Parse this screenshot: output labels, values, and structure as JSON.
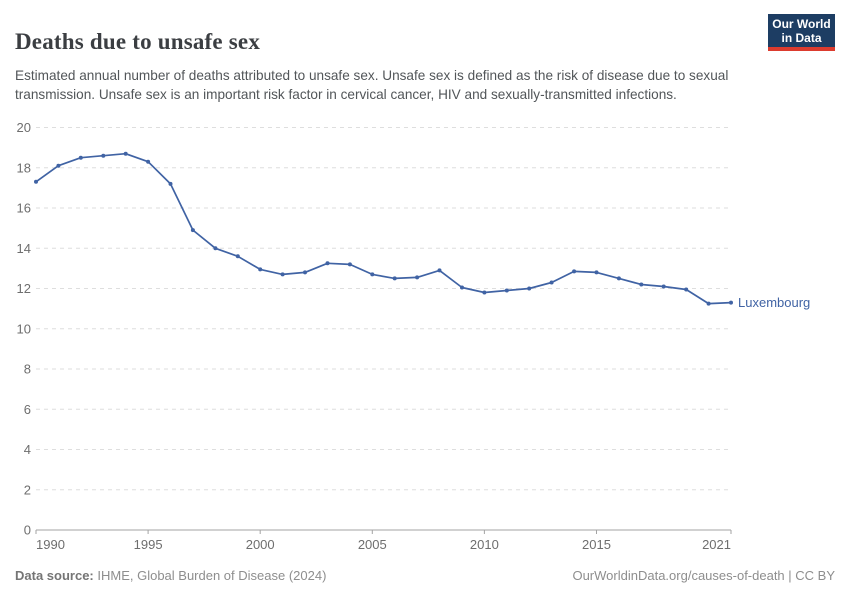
{
  "header": {
    "title": "Deaths due to unsafe sex",
    "subtitle": "Estimated annual number of deaths attributed to unsafe sex. Unsafe sex is defined as the risk of disease due to sexual transmission. Unsafe sex is an important risk factor in cervical cancer, HIV and sexually-transmitted infections.",
    "logo": {
      "line1": "Our World",
      "line2": "in Data",
      "bg_color": "#1d3d63",
      "stripe_color": "#dc3b2e"
    }
  },
  "chart_data": {
    "type": "line",
    "title": "Deaths due to unsafe sex",
    "xlabel": "",
    "ylabel": "",
    "ylim": [
      0,
      20
    ],
    "yticks": [
      0,
      2,
      4,
      6,
      8,
      10,
      12,
      14,
      16,
      18,
      20
    ],
    "xticks": [
      1990,
      1995,
      2000,
      2005,
      2010,
      2015,
      2021
    ],
    "grid": "horizontal-dashed",
    "legend_position": "end-of-line-label",
    "x": [
      1990,
      1991,
      1992,
      1993,
      1994,
      1995,
      1996,
      1997,
      1998,
      1999,
      2000,
      2001,
      2002,
      2003,
      2004,
      2005,
      2006,
      2007,
      2008,
      2009,
      2010,
      2011,
      2012,
      2013,
      2014,
      2015,
      2016,
      2017,
      2018,
      2019,
      2020,
      2021
    ],
    "series": [
      {
        "name": "Luxembourg",
        "color": "#4063a4",
        "values": [
          17.3,
          18.1,
          18.5,
          18.6,
          18.7,
          18.3,
          17.2,
          14.9,
          14.0,
          13.6,
          12.95,
          12.7,
          12.8,
          13.25,
          13.2,
          12.7,
          12.5,
          12.55,
          12.9,
          12.05,
          11.8,
          11.9,
          12.0,
          12.3,
          12.85,
          12.8,
          12.5,
          12.2,
          12.1,
          11.95,
          11.25,
          11.3
        ]
      }
    ],
    "colors": {
      "gridline": "#dedede",
      "axis": "#a3a3a3",
      "tick_label": "#6e6e6e"
    }
  },
  "footer": {
    "source_label": "Data source:",
    "source_value": " IHME, Global Burden of Disease (2024)",
    "credit": "OurWorldinData.org/causes-of-death | CC BY"
  }
}
